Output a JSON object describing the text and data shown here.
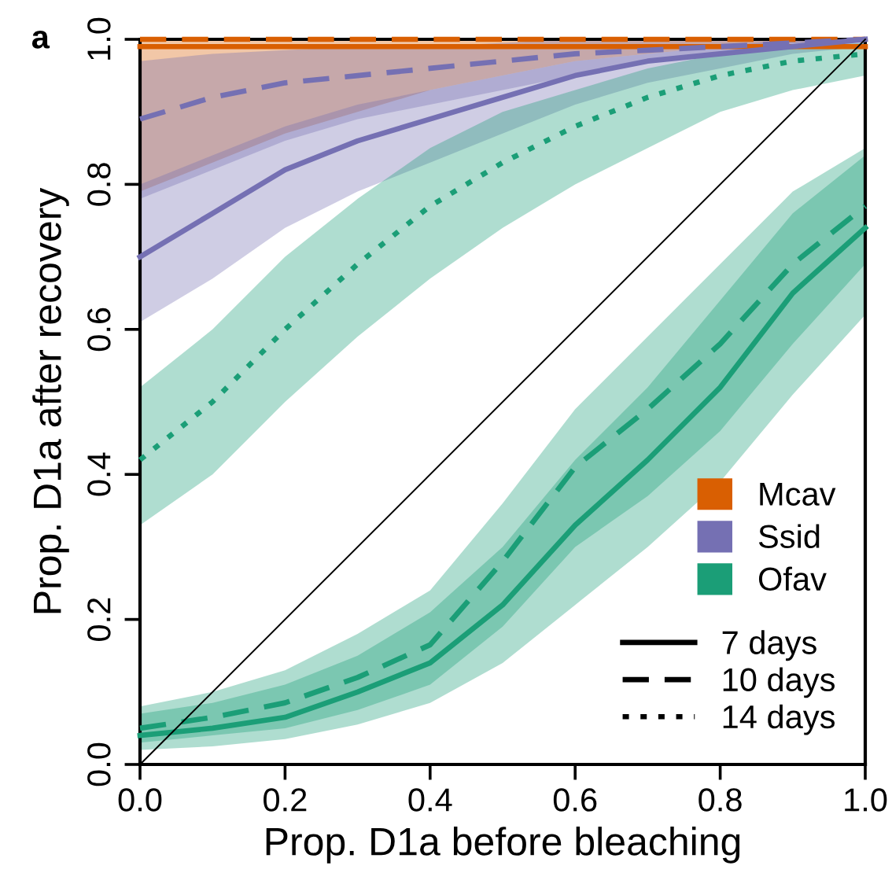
{
  "chart_data": {
    "type": "line",
    "title": "a",
    "xlabel": "Prop. D1a before bleaching",
    "ylabel": "Prop. D1a after recovery",
    "xlim": [
      0,
      1
    ],
    "ylim": [
      0,
      1
    ],
    "xticks": [
      {
        "value": 0,
        "label": "0.0"
      },
      0.2,
      0.4,
      0.6,
      0.8,
      {
        "value": 1,
        "label": "1.0"
      }
    ],
    "yticks": [
      {
        "value": 0,
        "label": "0.0"
      },
      0.2,
      0.4,
      0.6,
      0.8,
      {
        "value": 1,
        "label": "1.0"
      }
    ],
    "grid": false,
    "legend": "bottom right",
    "marker": "none",
    "annotations": [
      "7 days",
      "10 days",
      "14 days"
    ],
    "x": [
      0,
      0.1,
      0.2,
      0.3,
      0.4,
      0.5,
      0.6,
      0.7,
      0.8,
      0.9,
      1.0
    ],
    "series": [
      {
        "name": "Mcav",
        "color": "#d95f02",
        "line_style": "solid",
        "values": [
          0.99,
          0.99,
          0.99,
          0.99,
          0.99,
          0.99,
          0.99,
          0.99,
          0.99,
          0.99,
          0.99
        ],
        "lower": [
          0.79,
          0.83,
          0.87,
          0.9,
          0.93,
          0.95,
          0.97,
          0.98,
          0.99,
          0.995,
          1.0
        ],
        "upper": [
          1,
          1,
          1,
          1,
          1,
          1,
          1,
          1,
          1,
          1,
          1
        ]
      },
      {
        "color": "#d95f02",
        "line_style": "dashed",
        "values": [
          1,
          1,
          1,
          1,
          1,
          1,
          1,
          1,
          1,
          1,
          1
        ]
      },
      {
        "name": "Ssid",
        "color": "#7570b3",
        "line_style": "solid",
        "values": [
          0.7,
          0.76,
          0.82,
          0.86,
          0.89,
          0.92,
          0.95,
          0.97,
          0.98,
          0.99,
          1.0
        ],
        "lower": [
          0.61,
          0.67,
          0.74,
          0.79,
          0.83,
          0.87,
          0.91,
          0.94,
          0.96,
          0.98,
          0.99
        ],
        "upper": [
          0.8,
          0.84,
          0.88,
          0.91,
          0.93,
          0.95,
          0.97,
          0.98,
          0.99,
          1.0,
          1.0
        ]
      },
      {
        "color": "#7570b3",
        "line_style": "dashed",
        "values": [
          0.89,
          0.92,
          0.94,
          0.95,
          0.96,
          0.97,
          0.98,
          0.985,
          0.99,
          0.995,
          1.0
        ],
        "lower": [
          0.78,
          0.82,
          0.86,
          0.89,
          0.91,
          0.93,
          0.95,
          0.97,
          0.98,
          0.99,
          1.0
        ],
        "upper": [
          0.97,
          0.98,
          0.985,
          0.99,
          0.99,
          0.995,
          1,
          1,
          1,
          1,
          1
        ]
      },
      {
        "name": "Ofav",
        "color": "#1b9e77",
        "line_style": "solid",
        "values": [
          0.04,
          0.05,
          0.065,
          0.1,
          0.14,
          0.22,
          0.33,
          0.42,
          0.52,
          0.65,
          0.74
        ],
        "lower": [
          0.02,
          0.025,
          0.035,
          0.055,
          0.085,
          0.14,
          0.22,
          0.3,
          0.39,
          0.51,
          0.62
        ],
        "upper": [
          0.07,
          0.085,
          0.11,
          0.15,
          0.21,
          0.3,
          0.42,
          0.52,
          0.64,
          0.76,
          0.84
        ]
      },
      {
        "color": "#1b9e77",
        "line_style": "dashed",
        "values": [
          0.05,
          0.065,
          0.085,
          0.12,
          0.165,
          0.28,
          0.41,
          0.49,
          0.58,
          0.69,
          0.77
        ],
        "lower": [
          0.03,
          0.04,
          0.05,
          0.075,
          0.11,
          0.19,
          0.3,
          0.37,
          0.46,
          0.58,
          0.69
        ],
        "upper": [
          0.08,
          0.1,
          0.13,
          0.18,
          0.24,
          0.36,
          0.49,
          0.59,
          0.69,
          0.79,
          0.85
        ]
      },
      {
        "color": "#1b9e77",
        "line_style": "dotted",
        "values": [
          0.42,
          0.5,
          0.6,
          0.69,
          0.77,
          0.83,
          0.88,
          0.92,
          0.95,
          0.97,
          0.98
        ],
        "lower": [
          0.33,
          0.4,
          0.5,
          0.59,
          0.67,
          0.74,
          0.8,
          0.85,
          0.9,
          0.93,
          0.95
        ],
        "upper": [
          0.52,
          0.6,
          0.7,
          0.78,
          0.85,
          0.9,
          0.93,
          0.96,
          0.98,
          0.99,
          0.995
        ]
      },
      {
        "color": "#000000",
        "line_style": "solid",
        "x": [
          0,
          1
        ],
        "values": [
          0,
          1
        ]
      }
    ]
  }
}
